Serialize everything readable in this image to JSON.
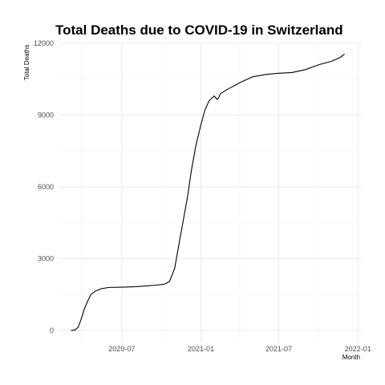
{
  "chart_data": {
    "type": "line",
    "title": "Total Deaths due to COVID-19 in Switzerland",
    "xlabel": "Month",
    "ylabel": "Total Deaths",
    "x_type": "date",
    "xlim": [
      "2020-02-05",
      "2022-01-10"
    ],
    "ylim": [
      -500,
      12000
    ],
    "x_ticks": [
      {
        "date": "2020-07-01",
        "label": "2020-07"
      },
      {
        "date": "2021-01-01",
        "label": "2021-01"
      },
      {
        "date": "2021-07-01",
        "label": "2021-07"
      },
      {
        "date": "2022-01-01",
        "label": "2022-01"
      }
    ],
    "y_ticks": [
      0,
      3000,
      6000,
      9000,
      12000
    ],
    "grid": true,
    "legend": "none",
    "line_color": "#000000",
    "series": [
      {
        "x": [
          "2020-03-05",
          "2020-03-15",
          "2020-03-22",
          "2020-03-29",
          "2020-04-05",
          "2020-04-12",
          "2020-04-20",
          "2020-05-01",
          "2020-05-15",
          "2020-06-01",
          "2020-07-01",
          "2020-08-01",
          "2020-09-01",
          "2020-09-20",
          "2020-10-01",
          "2020-10-10",
          "2020-10-20",
          "2020-11-01",
          "2020-11-10",
          "2020-11-20",
          "2020-12-01",
          "2020-12-10",
          "2020-12-20",
          "2021-01-01",
          "2021-01-10",
          "2021-01-20",
          "2021-02-01",
          "2021-02-08",
          "2021-02-12",
          "2021-02-14",
          "2021-02-16",
          "2021-03-01",
          "2021-04-01",
          "2021-05-01",
          "2021-06-01",
          "2021-07-01",
          "2021-08-01",
          "2021-09-01",
          "2021-10-01",
          "2021-11-01",
          "2021-11-20",
          "2021-12-01"
        ],
        "y": [
          0,
          30,
          150,
          500,
          900,
          1200,
          1500,
          1650,
          1750,
          1800,
          1810,
          1830,
          1870,
          1900,
          1920,
          1950,
          2050,
          2600,
          3500,
          4500,
          5600,
          6700,
          7700,
          8600,
          9200,
          9600,
          9800,
          9650,
          9750,
          9850,
          9900,
          10050,
          10350,
          10600,
          10700,
          10750,
          10780,
          10900,
          11100,
          11250,
          11400,
          11550
        ]
      }
    ]
  }
}
